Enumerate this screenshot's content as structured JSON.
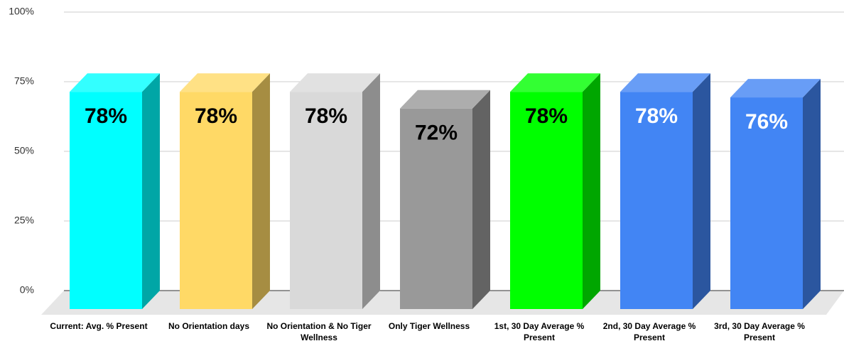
{
  "chart_data": {
    "type": "bar3d",
    "categories": [
      "Current: Avg. % Present",
      "No Orientation days",
      "No Orientation & No Tiger Wellness",
      "Only Tiger Wellness",
      "1st, 30 Day Average % Present",
      "2nd, 30 Day Average % Present",
      "3rd, 30 Day Average % Present"
    ],
    "values": [
      78,
      78,
      78,
      72,
      78,
      78,
      76
    ],
    "value_labels": [
      "78%",
      "78%",
      "78%",
      "72%",
      "78%",
      "78%",
      "76%"
    ],
    "colors": [
      "#00ffff",
      "#ffd966",
      "#d9d9d9",
      "#999999",
      "#00ff00",
      "#4285f4",
      "#4285f4"
    ],
    "value_label_colors": [
      "#000000",
      "#000000",
      "#000000",
      "#000000",
      "#000000",
      "#ffffff",
      "#ffffff"
    ],
    "ylim": [
      0,
      100
    ],
    "yticks": [
      {
        "value": 0,
        "label": "0%"
      },
      {
        "value": 25,
        "label": "25%"
      },
      {
        "value": 50,
        "label": "50%"
      },
      {
        "value": 75,
        "label": "75%"
      },
      {
        "value": 100,
        "label": "100%"
      }
    ],
    "grid": true
  }
}
